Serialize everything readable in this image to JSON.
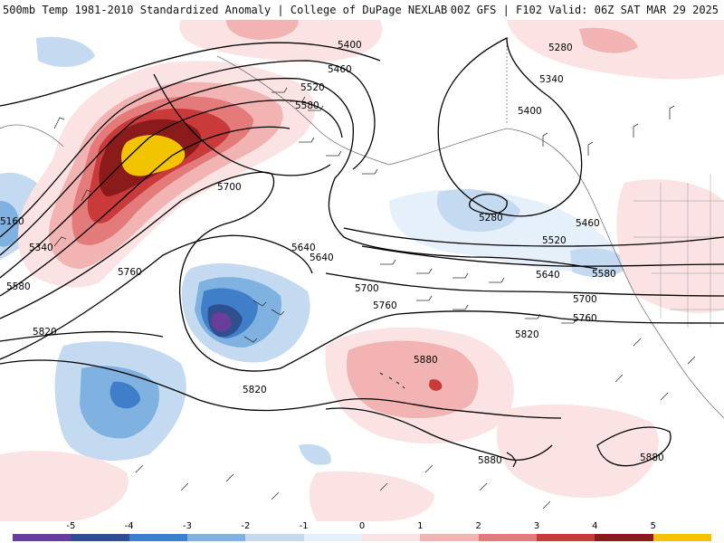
{
  "header": {
    "left": "500mb Temp 1981-2010 Standardized Anomaly | College of DuPage NEXLAB",
    "right": "00Z GFS | F102 Valid: 06Z SAT MAR 29 2025"
  },
  "map": {
    "height_contours": [
      "5160",
      "5280",
      "5340",
      "5400",
      "5460",
      "5520",
      "5580",
      "5640",
      "5700",
      "5760",
      "5820",
      "5880"
    ],
    "contour_labels_shown": [
      "5400",
      "5460",
      "5520",
      "5580",
      "5280",
      "5340",
      "5400",
      "5700",
      "5640",
      "5640",
      "5700",
      "5760",
      "5280",
      "5460",
      "5520",
      "5580",
      "5640",
      "5700",
      "5760",
      "5820",
      "5880",
      "5880",
      "5880",
      "5820",
      "5820",
      "5760",
      "5340",
      "5160",
      "5580"
    ]
  },
  "legend": {
    "tick_labels": [
      "-5",
      "-4",
      "-3",
      "-2",
      "-1",
      "0",
      "1",
      "2",
      "3",
      "4",
      "5"
    ],
    "colors": [
      "#6a3d9a",
      "#2f4f8f",
      "#3f7fc9",
      "#7fb2e0",
      "#c3daf0",
      "#e6f0fa",
      "#fbe3e3",
      "#f2b3b3",
      "#e47b7b",
      "#c93a3a",
      "#8b1a1a",
      "#f2c400"
    ]
  }
}
